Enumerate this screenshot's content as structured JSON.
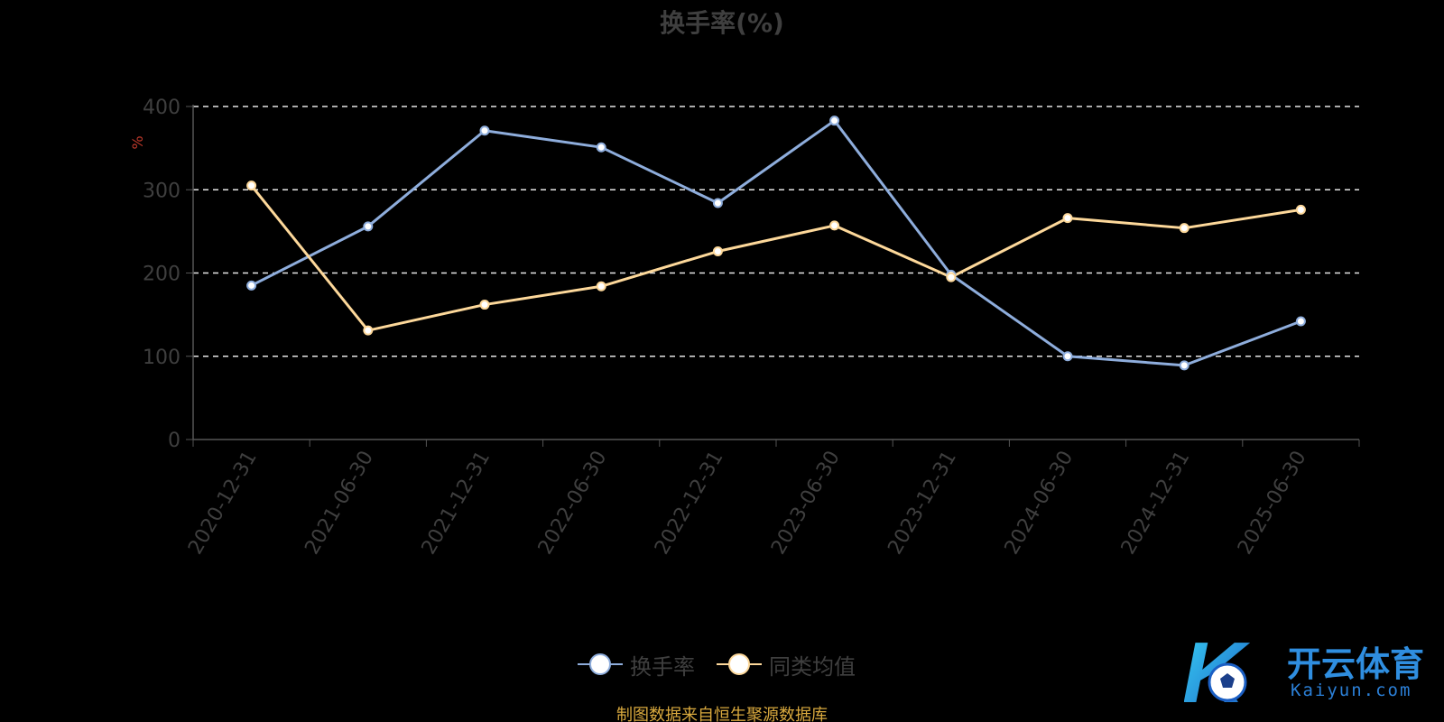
{
  "title": "换手率(%)",
  "source_note": "制图数据来自恒生聚源数据库",
  "watermark": {
    "brand": "开云体育",
    "sub": "Kaiyun.com",
    "logo_letter": "K"
  },
  "legend": [
    {
      "name": "换手率",
      "color": "#8eaddc"
    },
    {
      "name": "同类均值",
      "color": "#fdd89a"
    }
  ],
  "chart_data": {
    "type": "line",
    "title": "换手率(%)",
    "ylabel": "%",
    "xlabel": "",
    "ylim": [
      0,
      400
    ],
    "yticks": [
      "0",
      "100",
      "200",
      "300",
      "400"
    ],
    "grid": true,
    "legend_position": "bottom",
    "categories": [
      "2020-12-31",
      "2021-06-30",
      "2021-12-31",
      "2022-06-30",
      "2022-12-31",
      "2023-06-30",
      "2023-12-31",
      "2024-06-30",
      "2024-12-31",
      "2025-06-30"
    ],
    "series": [
      {
        "name": "换手率",
        "color": "#8eaddc",
        "values": [
          185,
          256,
          371,
          351,
          284,
          383,
          198,
          100,
          89,
          142
        ]
      },
      {
        "name": "同类均值",
        "color": "#fdd89a",
        "values": [
          305,
          131,
          162,
          184,
          226,
          257,
          195,
          266,
          254,
          276
        ]
      }
    ]
  }
}
